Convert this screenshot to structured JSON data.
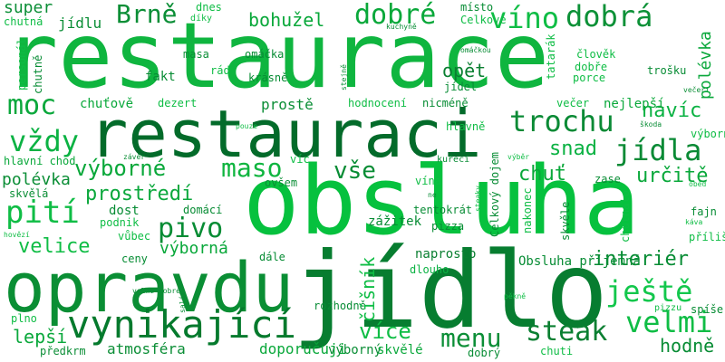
{
  "words": [
    {
      "text": "restaurace",
      "color": "#0fb53f"
    },
    {
      "text": "obsluha",
      "color": "#06c13e"
    },
    {
      "text": "restauraci",
      "color": "#036b2a"
    },
    {
      "text": "jídlo",
      "color": "#077d30"
    },
    {
      "text": "opravdu",
      "color": "#0a8e34"
    },
    {
      "text": "vynikající",
      "color": "#057a2d"
    },
    {
      "text": "dobré",
      "color": "#09a83a"
    },
    {
      "text": "víno",
      "color": "#0fbd45"
    },
    {
      "text": "dobrá",
      "color": "#0c9137"
    },
    {
      "text": "Brně",
      "color": "#0b8e36"
    },
    {
      "text": "bohužel",
      "color": "#09a83a"
    },
    {
      "text": "moc",
      "color": "#0ba83c"
    },
    {
      "text": "trochu",
      "color": "#0a8a35"
    },
    {
      "text": "vždy",
      "color": "#0bb243"
    },
    {
      "text": "jídla",
      "color": "#0a8a35"
    },
    {
      "text": "navíc",
      "color": "#0bb243"
    },
    {
      "text": "výborné",
      "color": "#09a83a"
    },
    {
      "text": "maso",
      "color": "#0fb53f"
    },
    {
      "text": "vše",
      "color": "#078c34"
    },
    {
      "text": "snad",
      "color": "#0bb243"
    },
    {
      "text": "chuť",
      "color": "#09a83a"
    },
    {
      "text": "určitě",
      "color": "#09a83a"
    },
    {
      "text": "prostředí",
      "color": "#0ba83c"
    },
    {
      "text": "pití",
      "color": "#0fbd45"
    },
    {
      "text": "pivo",
      "color": "#078c34"
    },
    {
      "text": "velice",
      "color": "#0fbd45"
    },
    {
      "text": "výborná",
      "color": "#09a83a"
    },
    {
      "text": "interiér",
      "color": "#078c34"
    },
    {
      "text": "ještě",
      "color": "#13c74c"
    },
    {
      "text": "velmi",
      "color": "#0fbd45"
    },
    {
      "text": "steak",
      "color": "#0a7f31"
    },
    {
      "text": "menu",
      "color": "#0b8e36"
    },
    {
      "text": "více",
      "color": "#0fbd45"
    },
    {
      "text": "lepší",
      "color": "#0ba83c"
    },
    {
      "text": "hodně",
      "color": "#078c34"
    },
    {
      "text": "super",
      "color": "#0b8e36"
    },
    {
      "text": "jídlu",
      "color": "#0b8e36"
    },
    {
      "text": "opět",
      "color": "#0a7f31"
    },
    {
      "text": "polévka",
      "color": "#0ba83c"
    },
    {
      "text": "prostě",
      "color": "#0b8e36"
    },
    {
      "text": "atmosféra",
      "color": "#0b8e36"
    },
    {
      "text": "doporučuji",
      "color": "#0b8e36"
    },
    {
      "text": "výborný",
      "color": "#09a83a"
    },
    {
      "text": "skvělé",
      "color": "#0b8e36"
    },
    {
      "text": "číšník",
      "color": "#0ba83c"
    },
    {
      "text": "předkrm",
      "color": "#0fbd45"
    },
    {
      "text": "dobrý",
      "color": "#0b8e36"
    },
    {
      "text": "chuti",
      "color": "#078c34"
    },
    {
      "text": "Obsluha příjemná",
      "color": "#0fbd45"
    },
    {
      "text": "naprosto",
      "color": "#078c34"
    },
    {
      "text": "dlouho",
      "color": "#0a7f31"
    },
    {
      "text": "dále",
      "color": "#0bb243"
    },
    {
      "text": "rozhodně",
      "color": "#078c34"
    },
    {
      "text": "ceny",
      "color": "#078c34"
    },
    {
      "text": "vůbec",
      "color": "#078c34"
    },
    {
      "text": "dost",
      "color": "#0fbd45"
    },
    {
      "text": "domácí",
      "color": "#078c34"
    },
    {
      "text": "podnik",
      "color": "#078c34"
    },
    {
      "text": "skvělá",
      "color": "#0fbd45"
    },
    {
      "text": "hlavní chod",
      "color": "#0b8e36"
    },
    {
      "text": "chuťově",
      "color": "#09a83a"
    },
    {
      "text": "dezert",
      "color": "#09a83a"
    },
    {
      "text": "hodnocení",
      "color": "#0fbd45"
    },
    {
      "text": "nicméně",
      "color": "#0fbd45"
    },
    {
      "text": "hlavně",
      "color": "#078c34"
    },
    {
      "text": "večer",
      "color": "#0fbd45"
    },
    {
      "text": "nejlepší",
      "color": "#0fbd45"
    },
    {
      "text": "jídel",
      "color": "#09a83a"
    },
    {
      "text": "krásně",
      "color": "#078c34"
    },
    {
      "text": "fakt",
      "color": "#078c34"
    },
    {
      "text": "rád",
      "color": "#078c34"
    },
    {
      "text": "masa",
      "color": "#0fbd45"
    },
    {
      "text": "omáčka",
      "color": "#0b8e36"
    },
    {
      "text": "Celkově",
      "color": "#078c34"
    },
    {
      "text": "místo",
      "color": "#0fbd45"
    },
    {
      "text": "dnes",
      "color": "#078c34"
    },
    {
      "text": "díky",
      "color": "#0fbd45"
    },
    {
      "text": "chutná",
      "color": "#0fbd45"
    },
    {
      "text": "člověk",
      "color": "#0fbd45"
    },
    {
      "text": "dobře",
      "color": "#0fbd45"
    },
    {
      "text": "porce",
      "color": "#0fbd45"
    },
    {
      "text": "trošku",
      "color": "#0fbd45"
    },
    {
      "text": "večeři",
      "color": "#078c34"
    },
    {
      "text": "výborně",
      "color": "#0b8e36"
    },
    {
      "text": "vína",
      "color": "#0fbd45"
    },
    {
      "text": "kuřecí",
      "color": "#0fbd45"
    },
    {
      "text": "tentokrát",
      "color": "#078c34"
    },
    {
      "text": "pizza",
      "color": "#078c34"
    },
    {
      "text": "zase",
      "color": "#078c34"
    },
    {
      "text": "fajn",
      "color": "#0b8e36"
    },
    {
      "text": "káva",
      "color": "#078c34"
    },
    {
      "text": "příliš",
      "color": "#0fbd45"
    },
    {
      "text": "pizzu",
      "color": "#0fbd45"
    },
    {
      "text": "spíše",
      "color": "#0fbd45"
    },
    {
      "text": "víc",
      "color": "#078c34"
    },
    {
      "text": "ovšem",
      "color": "#0fbd45"
    },
    {
      "text": "závěr",
      "color": "#0b8e36"
    },
    {
      "text": "Celkový dojem",
      "color": "#0b8e36"
    },
    {
      "text": "skvěle",
      "color": "#078c34"
    },
    {
      "text": "chutnalo",
      "color": "#078c34"
    },
    {
      "text": "nakonec",
      "color": "#0fbd45"
    },
    {
      "text": "steaky",
      "color": "#0fbd45"
    },
    {
      "text": "zážitek",
      "color": "#0fbd45"
    },
    {
      "text": "ne",
      "color": "#078c34"
    },
    {
      "text": "oběd",
      "color": "#078c34"
    },
    {
      "text": "hovězí",
      "color": "#0fbd45"
    },
    {
      "text": "velmi dobré",
      "color": "#0fbd45"
    },
    {
      "text": "salát",
      "color": "#0b8e36"
    },
    {
      "text": "pěkně",
      "color": "#078c34"
    },
    {
      "text": "plno",
      "color": "#0fbd45"
    },
    {
      "text": "stejně",
      "color": "#0fbd45"
    },
    {
      "text": "personál",
      "color": "#078c34"
    },
    {
      "text": "chutně",
      "color": "#0fbd45"
    },
    {
      "text": "kuchyně",
      "color": "#078c34"
    },
    {
      "text": "omáčkou",
      "color": "#078c34"
    },
    {
      "text": "tatarák",
      "color": "#078c34"
    },
    {
      "text": "pouze",
      "color": "#0fbd45"
    },
    {
      "text": "výběr",
      "color": "#0fbd45"
    },
    {
      "text": "škoda",
      "color": "#0fbd45"
    },
    {
      "text": "podniku",
      "color": "#078c34"
    }
  ]
}
